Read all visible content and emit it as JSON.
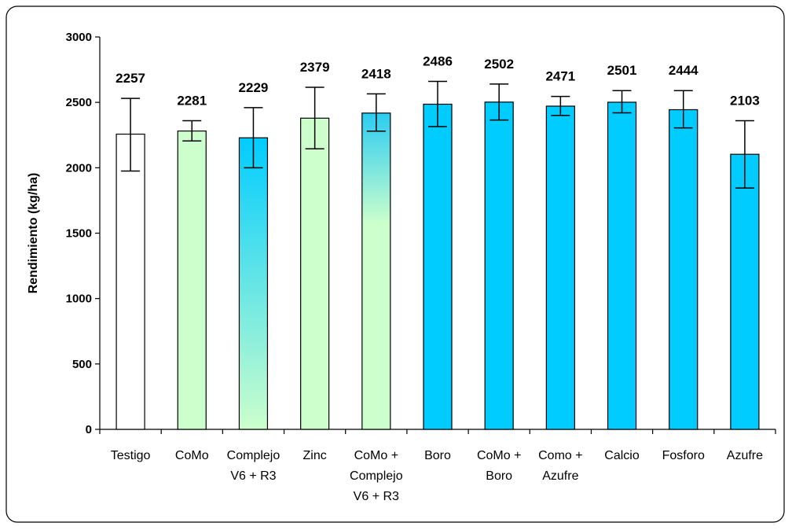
{
  "chart_data": {
    "type": "bar",
    "title": "",
    "xlabel": "",
    "ylabel": "Rendimiento (kg/ha)",
    "ylim": [
      0,
      3000
    ],
    "yticks": [
      0,
      500,
      1000,
      1500,
      2000,
      2500,
      3000
    ],
    "grid": false,
    "legend": "none",
    "categories": [
      [
        "Testigo"
      ],
      [
        "CoMo"
      ],
      [
        "Complejo",
        "V6 + R3"
      ],
      [
        "Zinc"
      ],
      [
        "CoMo +",
        "Complejo",
        "V6 + R3"
      ],
      [
        "Boro"
      ],
      [
        "CoMo +",
        "Boro"
      ],
      [
        "Como +",
        "Azufre"
      ],
      [
        "Calcio"
      ],
      [
        "Fosforo"
      ],
      [
        "Azufre"
      ]
    ],
    "values": [
      2257,
      2281,
      2229,
      2379,
      2418,
      2486,
      2502,
      2471,
      2501,
      2444,
      2103
    ],
    "data_labels": [
      "2257",
      "2281",
      "2229",
      "2379",
      "2418",
      "2486",
      "2502",
      "2471",
      "2501",
      "2444",
      "2103"
    ],
    "error_bars": [
      [
        1975,
        2530
      ],
      [
        2205,
        2360
      ],
      [
        2000,
        2460
      ],
      [
        2145,
        2615
      ],
      [
        2280,
        2565
      ],
      [
        2315,
        2660
      ],
      [
        2365,
        2640
      ],
      [
        2400,
        2545
      ],
      [
        2420,
        2590
      ],
      [
        2305,
        2590
      ],
      [
        1845,
        2360
      ]
    ],
    "bar_fills": [
      "white",
      "green",
      "blue-gradient",
      "green",
      "green-gradient",
      "blue",
      "blue",
      "blue",
      "blue",
      "blue",
      "blue"
    ]
  },
  "colors": {
    "white": "#ffffff",
    "green": "#ccffcc",
    "blue": "#00ccff",
    "outline": "#000000"
  }
}
